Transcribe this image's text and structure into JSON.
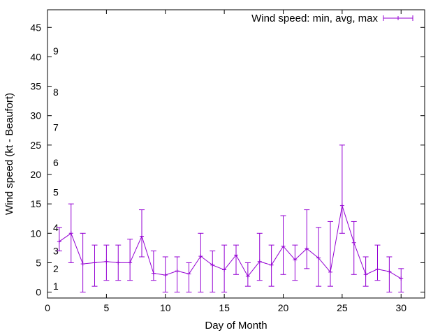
{
  "chart_data": {
    "type": "line",
    "title": "",
    "xlabel": "Day of Month",
    "ylabel": "Wind speed (kt - Beaufort)",
    "xlim": [
      0,
      32
    ],
    "ylim": [
      -1,
      48
    ],
    "xticks": [
      0,
      5,
      10,
      15,
      20,
      25,
      30
    ],
    "yticks": [
      0,
      5,
      10,
      15,
      20,
      25,
      30,
      35,
      40,
      45
    ],
    "grid": false,
    "legend_position": "top-right",
    "color": "#9400d3",
    "beaufort_labels": [
      {
        "label": "1",
        "y": 1
      },
      {
        "label": "2",
        "y": 4
      },
      {
        "label": "3",
        "y": 7
      },
      {
        "label": "4",
        "y": 11
      },
      {
        "label": "5",
        "y": 17
      },
      {
        "label": "6",
        "y": 22
      },
      {
        "label": "7",
        "y": 28
      },
      {
        "label": "8",
        "y": 34
      },
      {
        "label": "9",
        "y": 41
      }
    ],
    "series": [
      {
        "name": "Wind speed: min, avg, max",
        "x": [
          1,
          2,
          3,
          4,
          5,
          6,
          7,
          8,
          9,
          10,
          11,
          12,
          13,
          14,
          15,
          16,
          17,
          18,
          19,
          20,
          21,
          22,
          23,
          24,
          25,
          26,
          27,
          28,
          29,
          30
        ],
        "avg": [
          8.6,
          10,
          4.8,
          5,
          5.2,
          5,
          5,
          9.5,
          3.2,
          2.9,
          3.6,
          3.1,
          6.1,
          4.6,
          3.8,
          6.3,
          2.7,
          5.2,
          4.6,
          7.8,
          5.5,
          7.4,
          5.8,
          3.4,
          14.7,
          8.4,
          3.0,
          3.9,
          3.5,
          2.3
        ],
        "min": [
          7,
          5,
          0,
          1,
          2,
          2,
          2,
          6,
          2,
          0,
          0,
          0,
          0,
          0,
          0,
          3,
          1,
          2,
          1,
          3,
          2,
          4,
          1,
          1,
          10,
          3,
          1,
          2,
          0,
          0
        ],
        "max": [
          11,
          15,
          10,
          8,
          8,
          8,
          9,
          14,
          7,
          6,
          6,
          5,
          10,
          7,
          8,
          8,
          5,
          10,
          8,
          13,
          8,
          14,
          11,
          12,
          25,
          12,
          6,
          8,
          6,
          4
        ]
      }
    ]
  }
}
